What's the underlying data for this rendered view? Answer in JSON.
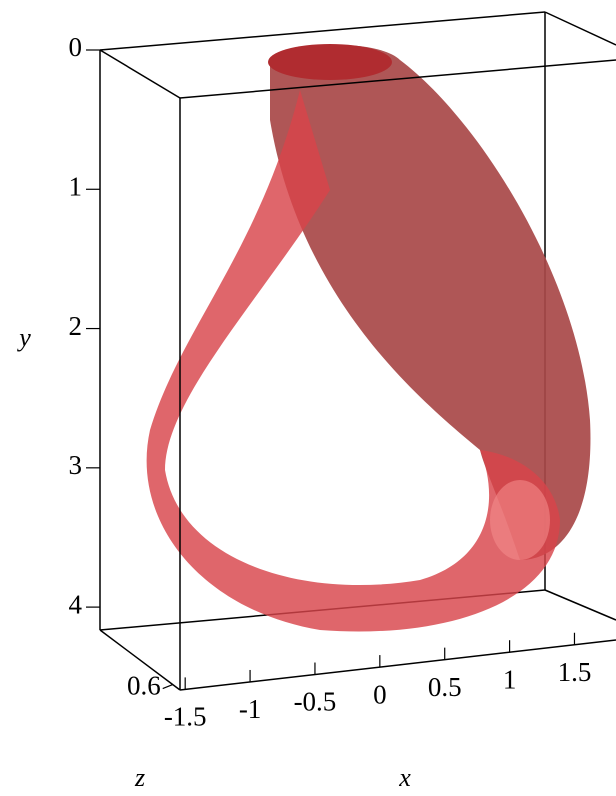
{
  "chart_data": {
    "type": "surface3d",
    "x_label": "x",
    "y_label": "y",
    "z_label": "z",
    "xlim": [
      -1.54,
      1.82
    ],
    "xticks": [
      -1.5,
      -1,
      -0.5,
      0,
      0.5,
      1,
      1.5
    ],
    "ylim": [
      0,
      4.15
    ],
    "yticks": [
      0,
      1,
      2,
      3,
      4
    ],
    "zlim": [
      0.4,
      0.62
    ],
    "zticks": [
      0.6
    ],
    "color": "#d8444a"
  }
}
